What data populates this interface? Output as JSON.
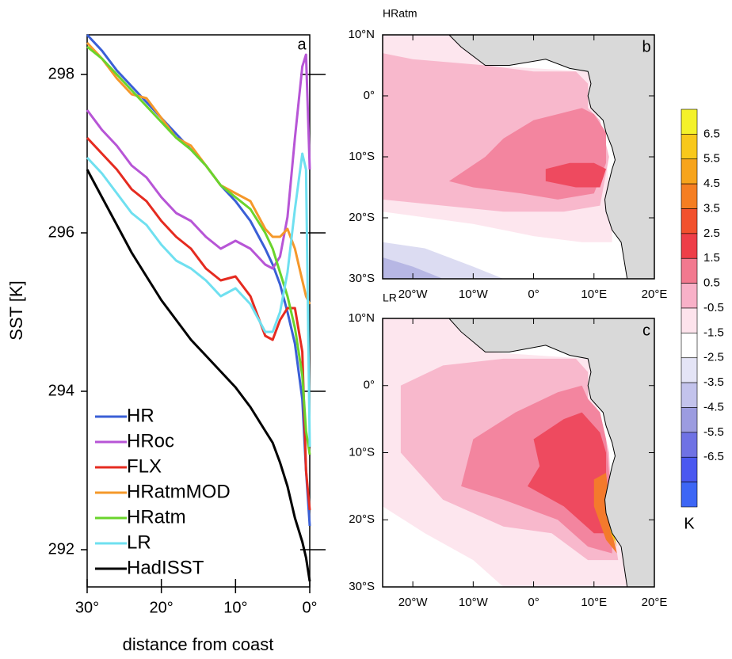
{
  "chart_data": {
    "type": "line",
    "panel_label": "a",
    "ylabel": "SST [K]",
    "xlabel": "distance from coast",
    "x": [
      30,
      28,
      26,
      24,
      22,
      20,
      18,
      16,
      14,
      12,
      10,
      8,
      6,
      5,
      4,
      3,
      2,
      1,
      0.5,
      0
    ],
    "xlim": [
      30,
      0
    ],
    "xticks": [
      {
        "value": 30,
        "label": "30°"
      },
      {
        "value": 20,
        "label": "20°"
      },
      {
        "value": 10,
        "label": "10°"
      },
      {
        "value": 0,
        "label": "0°"
      }
    ],
    "ylim": [
      291.53,
      298.5
    ],
    "yticks": [
      292,
      294,
      296,
      298
    ],
    "legend": "lower left",
    "series": [
      {
        "name": "HR",
        "color": "#3a5fd6",
        "values": [
          298.5,
          298.3,
          298.05,
          297.85,
          297.65,
          297.45,
          297.25,
          297.05,
          296.85,
          296.6,
          296.4,
          296.15,
          295.8,
          295.6,
          295.35,
          295.0,
          294.6,
          293.9,
          293.0,
          292.3
        ]
      },
      {
        "name": "HRoc",
        "color": "#b755d6",
        "values": [
          297.55,
          297.3,
          297.1,
          296.85,
          296.7,
          296.45,
          296.25,
          296.15,
          295.95,
          295.8,
          295.9,
          295.8,
          295.6,
          295.55,
          295.7,
          296.2,
          297.2,
          298.1,
          298.25,
          296.8
        ]
      },
      {
        "name": "FLX",
        "color": "#e52b20",
        "values": [
          297.2,
          297.0,
          296.8,
          296.55,
          296.4,
          296.15,
          295.95,
          295.8,
          295.55,
          295.4,
          295.45,
          295.2,
          294.7,
          294.65,
          294.9,
          295.05,
          295.05,
          294.5,
          293.0,
          292.5
        ]
      },
      {
        "name": "HRatmMOD",
        "color": "#f5982a",
        "values": [
          298.4,
          298.2,
          297.95,
          297.75,
          297.7,
          297.45,
          297.2,
          297.1,
          296.85,
          296.6,
          296.5,
          296.4,
          296.05,
          295.95,
          295.95,
          296.05,
          295.8,
          295.4,
          295.2,
          295.1
        ]
      },
      {
        "name": "HRatm",
        "color": "#6ad42c",
        "values": [
          298.35,
          298.2,
          298.0,
          297.8,
          297.6,
          297.4,
          297.2,
          297.05,
          296.85,
          296.6,
          296.45,
          296.3,
          296.0,
          295.8,
          295.5,
          295.2,
          294.8,
          294.2,
          293.5,
          293.2
        ]
      },
      {
        "name": "LR",
        "color": "#6fe0f0",
        "values": [
          296.95,
          296.75,
          296.5,
          296.25,
          296.1,
          295.85,
          295.65,
          295.55,
          295.4,
          295.2,
          295.3,
          295.1,
          294.75,
          294.75,
          295.0,
          295.5,
          296.3,
          297.0,
          296.8,
          293.3
        ]
      },
      {
        "name": "HadISST",
        "color": "#000000",
        "values": [
          296.8,
          296.45,
          296.1,
          295.75,
          295.45,
          295.15,
          294.9,
          294.65,
          294.45,
          294.25,
          294.05,
          293.8,
          293.5,
          293.35,
          293.1,
          292.8,
          292.4,
          292.1,
          291.9,
          291.6
        ]
      }
    ]
  },
  "maps": {
    "lonlim": [
      -25,
      20
    ],
    "latlim": [
      -30,
      10
    ],
    "lon_ticks": [
      {
        "value": -20,
        "label": "20°W"
      },
      {
        "value": -10,
        "label": "10°W"
      },
      {
        "value": 0,
        "label": "0°"
      },
      {
        "value": 10,
        "label": "10°E"
      },
      {
        "value": 20,
        "label": "20°E"
      }
    ],
    "lat_ticks": [
      {
        "value": 10,
        "label": "10°N"
      },
      {
        "value": 0,
        "label": "0°"
      },
      {
        "value": -10,
        "label": "10°S"
      },
      {
        "value": -20,
        "label": "20°S"
      },
      {
        "value": -30,
        "label": "30°S"
      }
    ],
    "panels": [
      {
        "title": "HRatm",
        "letter": "b"
      },
      {
        "title": "LR",
        "letter": "c"
      }
    ]
  },
  "colorbar": {
    "unit": "K",
    "labels": [
      6.5,
      5.5,
      4.5,
      3.5,
      2.5,
      1.5,
      0.5,
      -0.5,
      -1.5,
      -2.5,
      -3.5,
      -4.5,
      -5.5,
      -6.5
    ],
    "colors": [
      "#f4f22a",
      "#f8c81b",
      "#f7a41c",
      "#f57e22",
      "#f2512d",
      "#ee3e48",
      "#f2798f",
      "#f8b1c8",
      "#fde3ec",
      "#ffffff",
      "#e4e4f6",
      "#c3c3ec",
      "#9c9ce0",
      "#6f72e4",
      "#4a58f0",
      "#3d66f5"
    ]
  }
}
